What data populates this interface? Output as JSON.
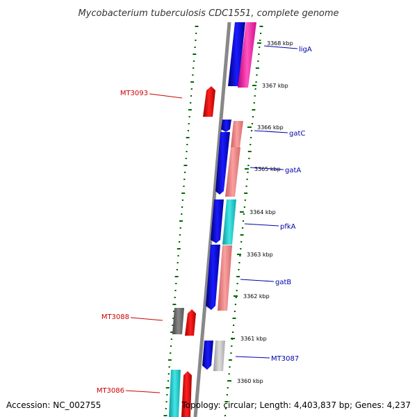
{
  "title": "Mycobacterium tuberculosis CDC1551, complete genome",
  "footer": {
    "accession": "Accession: NC_002755",
    "topology": "Topology: circular; Length: 4,403,837 bp; Genes: 4,237"
  },
  "colors": {
    "forward_cds": "#0000ee",
    "reverse_cds_magenta": "#ff2aa8",
    "reverse_cds_salmon": "#f08080",
    "reverse_cds_cyan": "#22cccc",
    "unnamed_red": "#ee0000",
    "grey_gene": "#777777",
    "light_grey_gene": "#bbbbbb",
    "backbone": "#888888",
    "gc_skew": "#006600",
    "label_blue": "#0000aa",
    "label_red": "#cc0000"
  },
  "position_ticks": [
    "3368 kbp",
    "3367 kbp",
    "3366 kbp",
    "3365 kbp",
    "3364 kbp",
    "3363 kbp",
    "3362 kbp",
    "3361 kbp",
    "3360 kbp"
  ],
  "gene_labels": {
    "named": [
      "ligA",
      "gatC",
      "gatA",
      "pfkA",
      "gatB",
      "MT3087"
    ],
    "unnamed": [
      "MT3093",
      "MT3088",
      "MT3086"
    ]
  }
}
